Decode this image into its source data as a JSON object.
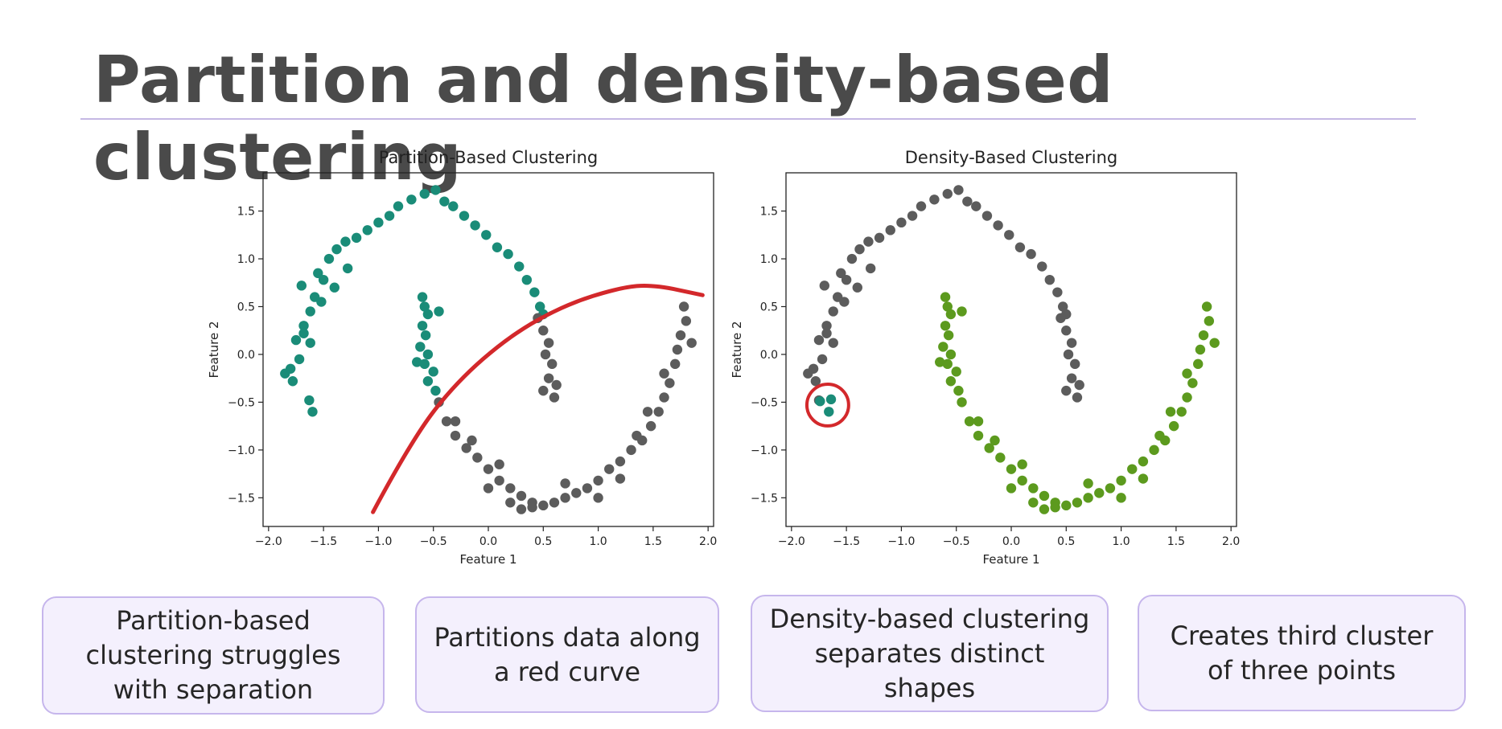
{
  "title": "Partition and density-based clustering",
  "colors": {
    "teal": "#1a8c78",
    "gray": "#5c5c5c",
    "green": "#5c9a1e",
    "red": "#d3282b"
  },
  "chart_data": [
    {
      "type": "scatter",
      "title": "Partition-Based Clustering",
      "xlabel": "Feature 1",
      "ylabel": "Feature 2",
      "xlim": [
        -2.05,
        2.05
      ],
      "ylim": [
        -1.8,
        1.9
      ],
      "xticks": [
        -2.0,
        -1.5,
        -1.0,
        -0.5,
        0.0,
        0.5,
        1.0,
        1.5,
        2.0
      ],
      "yticks": [
        -1.5,
        -1.0,
        -0.5,
        0.0,
        0.5,
        1.0,
        1.5
      ],
      "xtick_labels": [
        "−2.0",
        "−1.5",
        "−1.0",
        "−0.5",
        "0.0",
        "0.5",
        "1.0",
        "1.5",
        "2.0"
      ],
      "ytick_labels": [
        "−1.5",
        "−1.0",
        "−0.5",
        "0.0",
        "0.5",
        "1.0",
        "1.5"
      ],
      "series": [
        {
          "color": "#1a8c78",
          "points": [
            [
              -1.85,
              -0.2
            ],
            [
              -1.8,
              -0.15
            ],
            [
              -1.78,
              -0.28
            ],
            [
              -1.72,
              -0.05
            ],
            [
              -1.75,
              0.15
            ],
            [
              -1.68,
              0.3
            ],
            [
              -1.62,
              0.45
            ],
            [
              -1.58,
              0.6
            ],
            [
              -1.7,
              0.72
            ],
            [
              -1.63,
              -0.48
            ],
            [
              -1.6,
              -0.6
            ],
            [
              -1.55,
              0.85
            ],
            [
              -1.5,
              0.78
            ],
            [
              -1.45,
              1.0
            ],
            [
              -1.38,
              1.1
            ],
            [
              -1.3,
              1.18
            ],
            [
              -1.2,
              1.22
            ],
            [
              -1.1,
              1.3
            ],
            [
              -1.0,
              1.38
            ],
            [
              -0.9,
              1.45
            ],
            [
              -0.82,
              1.55
            ],
            [
              -0.7,
              1.62
            ],
            [
              -0.58,
              1.68
            ],
            [
              -0.48,
              1.72
            ],
            [
              -0.4,
              1.6
            ],
            [
              -0.32,
              1.55
            ],
            [
              -0.22,
              1.45
            ],
            [
              -0.12,
              1.35
            ],
            [
              -0.02,
              1.25
            ],
            [
              0.08,
              1.12
            ],
            [
              0.18,
              1.05
            ],
            [
              0.28,
              0.92
            ],
            [
              0.35,
              0.78
            ],
            [
              0.42,
              0.65
            ],
            [
              0.47,
              0.5
            ],
            [
              0.5,
              0.42
            ],
            [
              -1.68,
              0.22
            ],
            [
              -1.62,
              0.12
            ],
            [
              -1.52,
              0.55
            ],
            [
              -1.4,
              0.7
            ],
            [
              -1.28,
              0.9
            ],
            [
              -0.6,
              0.6
            ],
            [
              -0.58,
              0.5
            ],
            [
              -0.55,
              0.42
            ],
            [
              -0.6,
              0.3
            ],
            [
              -0.57,
              0.2
            ],
            [
              -0.62,
              0.08
            ],
            [
              -0.55,
              0.0
            ],
            [
              -0.65,
              -0.08
            ],
            [
              -0.58,
              -0.1
            ],
            [
              -0.5,
              -0.18
            ],
            [
              -0.55,
              -0.28
            ],
            [
              -0.48,
              -0.38
            ],
            [
              -0.45,
              0.45
            ]
          ]
        },
        {
          "color": "#5c5c5c",
          "points": [
            [
              -0.45,
              -0.5
            ],
            [
              -0.38,
              -0.7
            ],
            [
              -0.3,
              -0.85
            ],
            [
              -0.2,
              -0.98
            ],
            [
              -0.1,
              -1.08
            ],
            [
              0.0,
              -1.2
            ],
            [
              0.1,
              -1.32
            ],
            [
              0.2,
              -1.4
            ],
            [
              0.3,
              -1.48
            ],
            [
              0.4,
              -1.55
            ],
            [
              0.5,
              -1.58
            ],
            [
              0.6,
              -1.55
            ],
            [
              0.7,
              -1.5
            ],
            [
              0.8,
              -1.45
            ],
            [
              0.9,
              -1.4
            ],
            [
              1.0,
              -1.32
            ],
            [
              1.1,
              -1.2
            ],
            [
              1.2,
              -1.12
            ],
            [
              1.3,
              -1.0
            ],
            [
              1.4,
              -0.9
            ],
            [
              1.48,
              -0.75
            ],
            [
              1.55,
              -0.6
            ],
            [
              1.6,
              -0.45
            ],
            [
              1.65,
              -0.3
            ],
            [
              1.7,
              -0.1
            ],
            [
              1.72,
              0.05
            ],
            [
              1.75,
              0.2
            ],
            [
              1.8,
              0.35
            ],
            [
              1.78,
              0.5
            ],
            [
              1.85,
              0.12
            ],
            [
              0.45,
              0.38
            ],
            [
              0.5,
              0.25
            ],
            [
              0.55,
              0.12
            ],
            [
              0.52,
              0.0
            ],
            [
              0.58,
              -0.1
            ],
            [
              0.55,
              -0.25
            ],
            [
              0.62,
              -0.32
            ],
            [
              0.5,
              -0.38
            ],
            [
              0.6,
              -0.45
            ],
            [
              0.0,
              -1.4
            ],
            [
              0.2,
              -1.55
            ],
            [
              0.4,
              -1.6
            ],
            [
              0.7,
              -1.35
            ],
            [
              1.0,
              -1.5
            ],
            [
              1.2,
              -1.3
            ],
            [
              1.35,
              -0.85
            ],
            [
              1.45,
              -0.6
            ],
            [
              1.6,
              -0.2
            ],
            [
              -0.3,
              -0.7
            ],
            [
              -0.15,
              -0.9
            ],
            [
              0.1,
              -1.15
            ],
            [
              0.3,
              -1.62
            ]
          ]
        }
      ],
      "curve": {
        "color": "#d3282b",
        "points": [
          [
            -1.05,
            -1.65
          ],
          [
            -0.7,
            -0.9
          ],
          [
            -0.3,
            -0.3
          ],
          [
            0.2,
            0.2
          ],
          [
            0.7,
            0.52
          ],
          [
            1.2,
            0.7
          ],
          [
            1.5,
            0.73
          ],
          [
            1.95,
            0.62
          ]
        ]
      }
    },
    {
      "type": "scatter",
      "title": "Density-Based Clustering",
      "xlabel": "Feature 1",
      "ylabel": "Feature 2",
      "xlim": [
        -2.05,
        2.05
      ],
      "ylim": [
        -1.8,
        1.9
      ],
      "xticks": [
        -2.0,
        -1.5,
        -1.0,
        -0.5,
        0.0,
        0.5,
        1.0,
        1.5,
        2.0
      ],
      "yticks": [
        -1.5,
        -1.0,
        -0.5,
        0.0,
        0.5,
        1.0,
        1.5
      ],
      "xtick_labels": [
        "−2.0",
        "−1.5",
        "−1.0",
        "−0.5",
        "0.0",
        "0.5",
        "1.0",
        "1.5",
        "2.0"
      ],
      "ytick_labels": [
        "−1.5",
        "−1.0",
        "−0.5",
        "0.0",
        "0.5",
        "1.0",
        "1.5"
      ],
      "series": [
        {
          "color": "#5c5c5c",
          "points": [
            [
              -1.85,
              -0.2
            ],
            [
              -1.8,
              -0.15
            ],
            [
              -1.78,
              -0.28
            ],
            [
              -1.72,
              -0.05
            ],
            [
              -1.75,
              0.15
            ],
            [
              -1.68,
              0.3
            ],
            [
              -1.62,
              0.45
            ],
            [
              -1.58,
              0.6
            ],
            [
              -1.7,
              0.72
            ],
            [
              -1.55,
              0.85
            ],
            [
              -1.5,
              0.78
            ],
            [
              -1.45,
              1.0
            ],
            [
              -1.38,
              1.1
            ],
            [
              -1.3,
              1.18
            ],
            [
              -1.2,
              1.22
            ],
            [
              -1.1,
              1.3
            ],
            [
              -1.0,
              1.38
            ],
            [
              -0.9,
              1.45
            ],
            [
              -0.82,
              1.55
            ],
            [
              -0.7,
              1.62
            ],
            [
              -0.58,
              1.68
            ],
            [
              -0.48,
              1.72
            ],
            [
              -0.4,
              1.6
            ],
            [
              -0.32,
              1.55
            ],
            [
              -0.22,
              1.45
            ],
            [
              -0.12,
              1.35
            ],
            [
              -0.02,
              1.25
            ],
            [
              0.08,
              1.12
            ],
            [
              0.18,
              1.05
            ],
            [
              0.28,
              0.92
            ],
            [
              0.35,
              0.78
            ],
            [
              0.42,
              0.65
            ],
            [
              0.47,
              0.5
            ],
            [
              0.5,
              0.42
            ],
            [
              -1.68,
              0.22
            ],
            [
              -1.62,
              0.12
            ],
            [
              -1.52,
              0.55
            ],
            [
              -1.4,
              0.7
            ],
            [
              -1.28,
              0.9
            ],
            [
              0.45,
              0.38
            ],
            [
              0.5,
              0.25
            ],
            [
              0.55,
              0.12
            ],
            [
              0.52,
              0.0
            ],
            [
              0.58,
              -0.1
            ],
            [
              0.55,
              -0.25
            ],
            [
              0.62,
              -0.32
            ],
            [
              0.5,
              -0.38
            ],
            [
              0.6,
              -0.45
            ],
            [
              -1.75,
              -0.48
            ]
          ]
        },
        {
          "color": "#5c9a1e",
          "points": [
            [
              -0.6,
              0.6
            ],
            [
              -0.58,
              0.5
            ],
            [
              -0.55,
              0.42
            ],
            [
              -0.6,
              0.3
            ],
            [
              -0.57,
              0.2
            ],
            [
              -0.62,
              0.08
            ],
            [
              -0.55,
              0.0
            ],
            [
              -0.65,
              -0.08
            ],
            [
              -0.58,
              -0.1
            ],
            [
              -0.5,
              -0.18
            ],
            [
              -0.55,
              -0.28
            ],
            [
              -0.48,
              -0.38
            ],
            [
              -0.45,
              0.45
            ],
            [
              -0.45,
              -0.5
            ],
            [
              -0.38,
              -0.7
            ],
            [
              -0.3,
              -0.85
            ],
            [
              -0.2,
              -0.98
            ],
            [
              -0.1,
              -1.08
            ],
            [
              0.0,
              -1.2
            ],
            [
              0.1,
              -1.32
            ],
            [
              0.2,
              -1.4
            ],
            [
              0.3,
              -1.48
            ],
            [
              0.4,
              -1.55
            ],
            [
              0.5,
              -1.58
            ],
            [
              0.6,
              -1.55
            ],
            [
              0.7,
              -1.5
            ],
            [
              0.8,
              -1.45
            ],
            [
              0.9,
              -1.4
            ],
            [
              1.0,
              -1.32
            ],
            [
              1.1,
              -1.2
            ],
            [
              1.2,
              -1.12
            ],
            [
              1.3,
              -1.0
            ],
            [
              1.4,
              -0.9
            ],
            [
              1.48,
              -0.75
            ],
            [
              1.55,
              -0.6
            ],
            [
              1.6,
              -0.45
            ],
            [
              1.65,
              -0.3
            ],
            [
              1.7,
              -0.1
            ],
            [
              1.72,
              0.05
            ],
            [
              1.75,
              0.2
            ],
            [
              1.8,
              0.35
            ],
            [
              1.78,
              0.5
            ],
            [
              1.85,
              0.12
            ],
            [
              0.0,
              -1.4
            ],
            [
              0.2,
              -1.55
            ],
            [
              0.4,
              -1.6
            ],
            [
              0.7,
              -1.35
            ],
            [
              1.0,
              -1.5
            ],
            [
              1.2,
              -1.3
            ],
            [
              1.35,
              -0.85
            ],
            [
              1.45,
              -0.6
            ],
            [
              1.6,
              -0.2
            ],
            [
              -0.3,
              -0.7
            ],
            [
              -0.15,
              -0.9
            ],
            [
              0.1,
              -1.15
            ],
            [
              0.3,
              -1.62
            ]
          ]
        },
        {
          "color": "#1a8c78",
          "points": [
            [
              -1.64,
              -0.47
            ],
            [
              -1.74,
              -0.49
            ],
            [
              -1.66,
              -0.6
            ]
          ]
        }
      ],
      "highlight_circle": {
        "color": "#d3282b",
        "center": [
          -1.67,
          -0.53
        ],
        "radius_x": 0.19
      }
    }
  ],
  "cards": [
    "Partition-based clustering struggles with separation",
    "Partitions data along a red curve",
    "Density-based clustering separates distinct shapes",
    "Creates third cluster of three points"
  ]
}
